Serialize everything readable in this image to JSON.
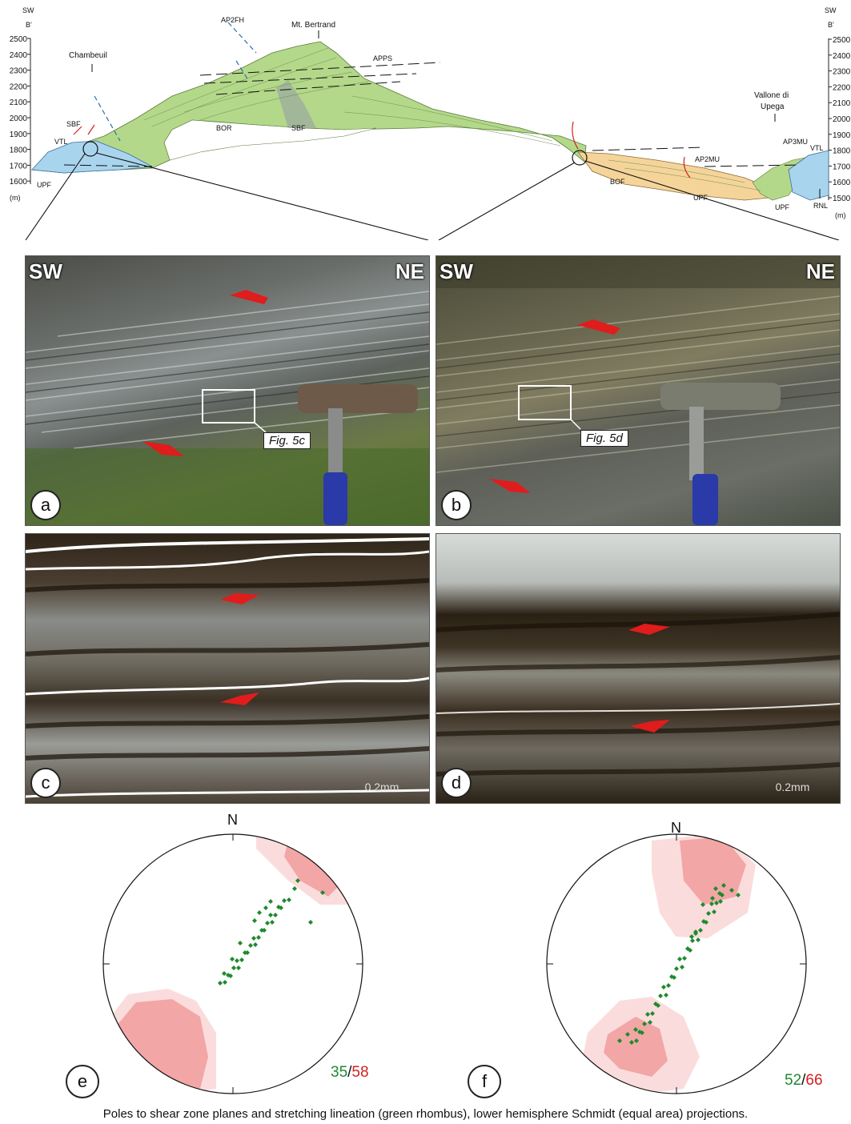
{
  "section": {
    "corner_left": [
      "SW",
      "B'"
    ],
    "corner_right": [
      "SW",
      "B'"
    ],
    "unit": "(m)",
    "elevations_left": [
      "2500",
      "2400",
      "2300",
      "2200",
      "2100",
      "2000",
      "1900",
      "1800",
      "1700",
      "1600"
    ],
    "elevations_right": [
      "2500",
      "2400",
      "2300",
      "2200",
      "2100",
      "2000",
      "1900",
      "1800",
      "1700",
      "1600",
      "1500"
    ],
    "places": {
      "bertrand": "Mt. Bertrand",
      "chambeuil": "Chambeuil",
      "vallone_1": "Vallone di",
      "vallone_2": "Upega"
    },
    "labels": {
      "ap2fh": "AP2FH",
      "apps": "APPS",
      "sbf_top": "SBF",
      "vtl_left": "VTL",
      "upf_left": "UPF",
      "bor": "BOR",
      "sbf_mid": "SBF",
      "bof": "BOF",
      "ap2mu": "AP2MU",
      "upf_mid": "UPF",
      "upf_right": "UPF",
      "ap3mu": "AP3MU",
      "vtl_right": "VTL",
      "rnl": "RNL"
    }
  },
  "photos": {
    "a": {
      "badge": "a",
      "left": "SW",
      "right": "NE",
      "figref": "Fig. 5c"
    },
    "b": {
      "badge": "b",
      "left": "SW",
      "right": "NE",
      "figref": "Fig. 5d"
    },
    "c": {
      "badge": "c",
      "scale": "0.2mm"
    },
    "d": {
      "badge": "d",
      "scale": "0.2mm"
    }
  },
  "stereonets": {
    "e": {
      "badge": "e",
      "north": "N",
      "count_green": "35",
      "sep": "/",
      "count_red": "58"
    },
    "f": {
      "badge": "f",
      "north": "N",
      "count_green": "52",
      "sep": "/",
      "count_red": "66"
    }
  },
  "colors": {
    "green_unit": "#b4d88a",
    "blue_unit": "#a9d4ee",
    "orange_unit": "#f5d49a",
    "lineation": "#1e8a2e",
    "pole_contour_light": "#fbdcdc",
    "pole_contour_dark": "#f2a6a6",
    "shear_arrow": "#e01c1c"
  },
  "caption": "Poles to shear zone planes and stretching lineation (green rhombus), lower hemisphere Schmidt (equal area) projections."
}
